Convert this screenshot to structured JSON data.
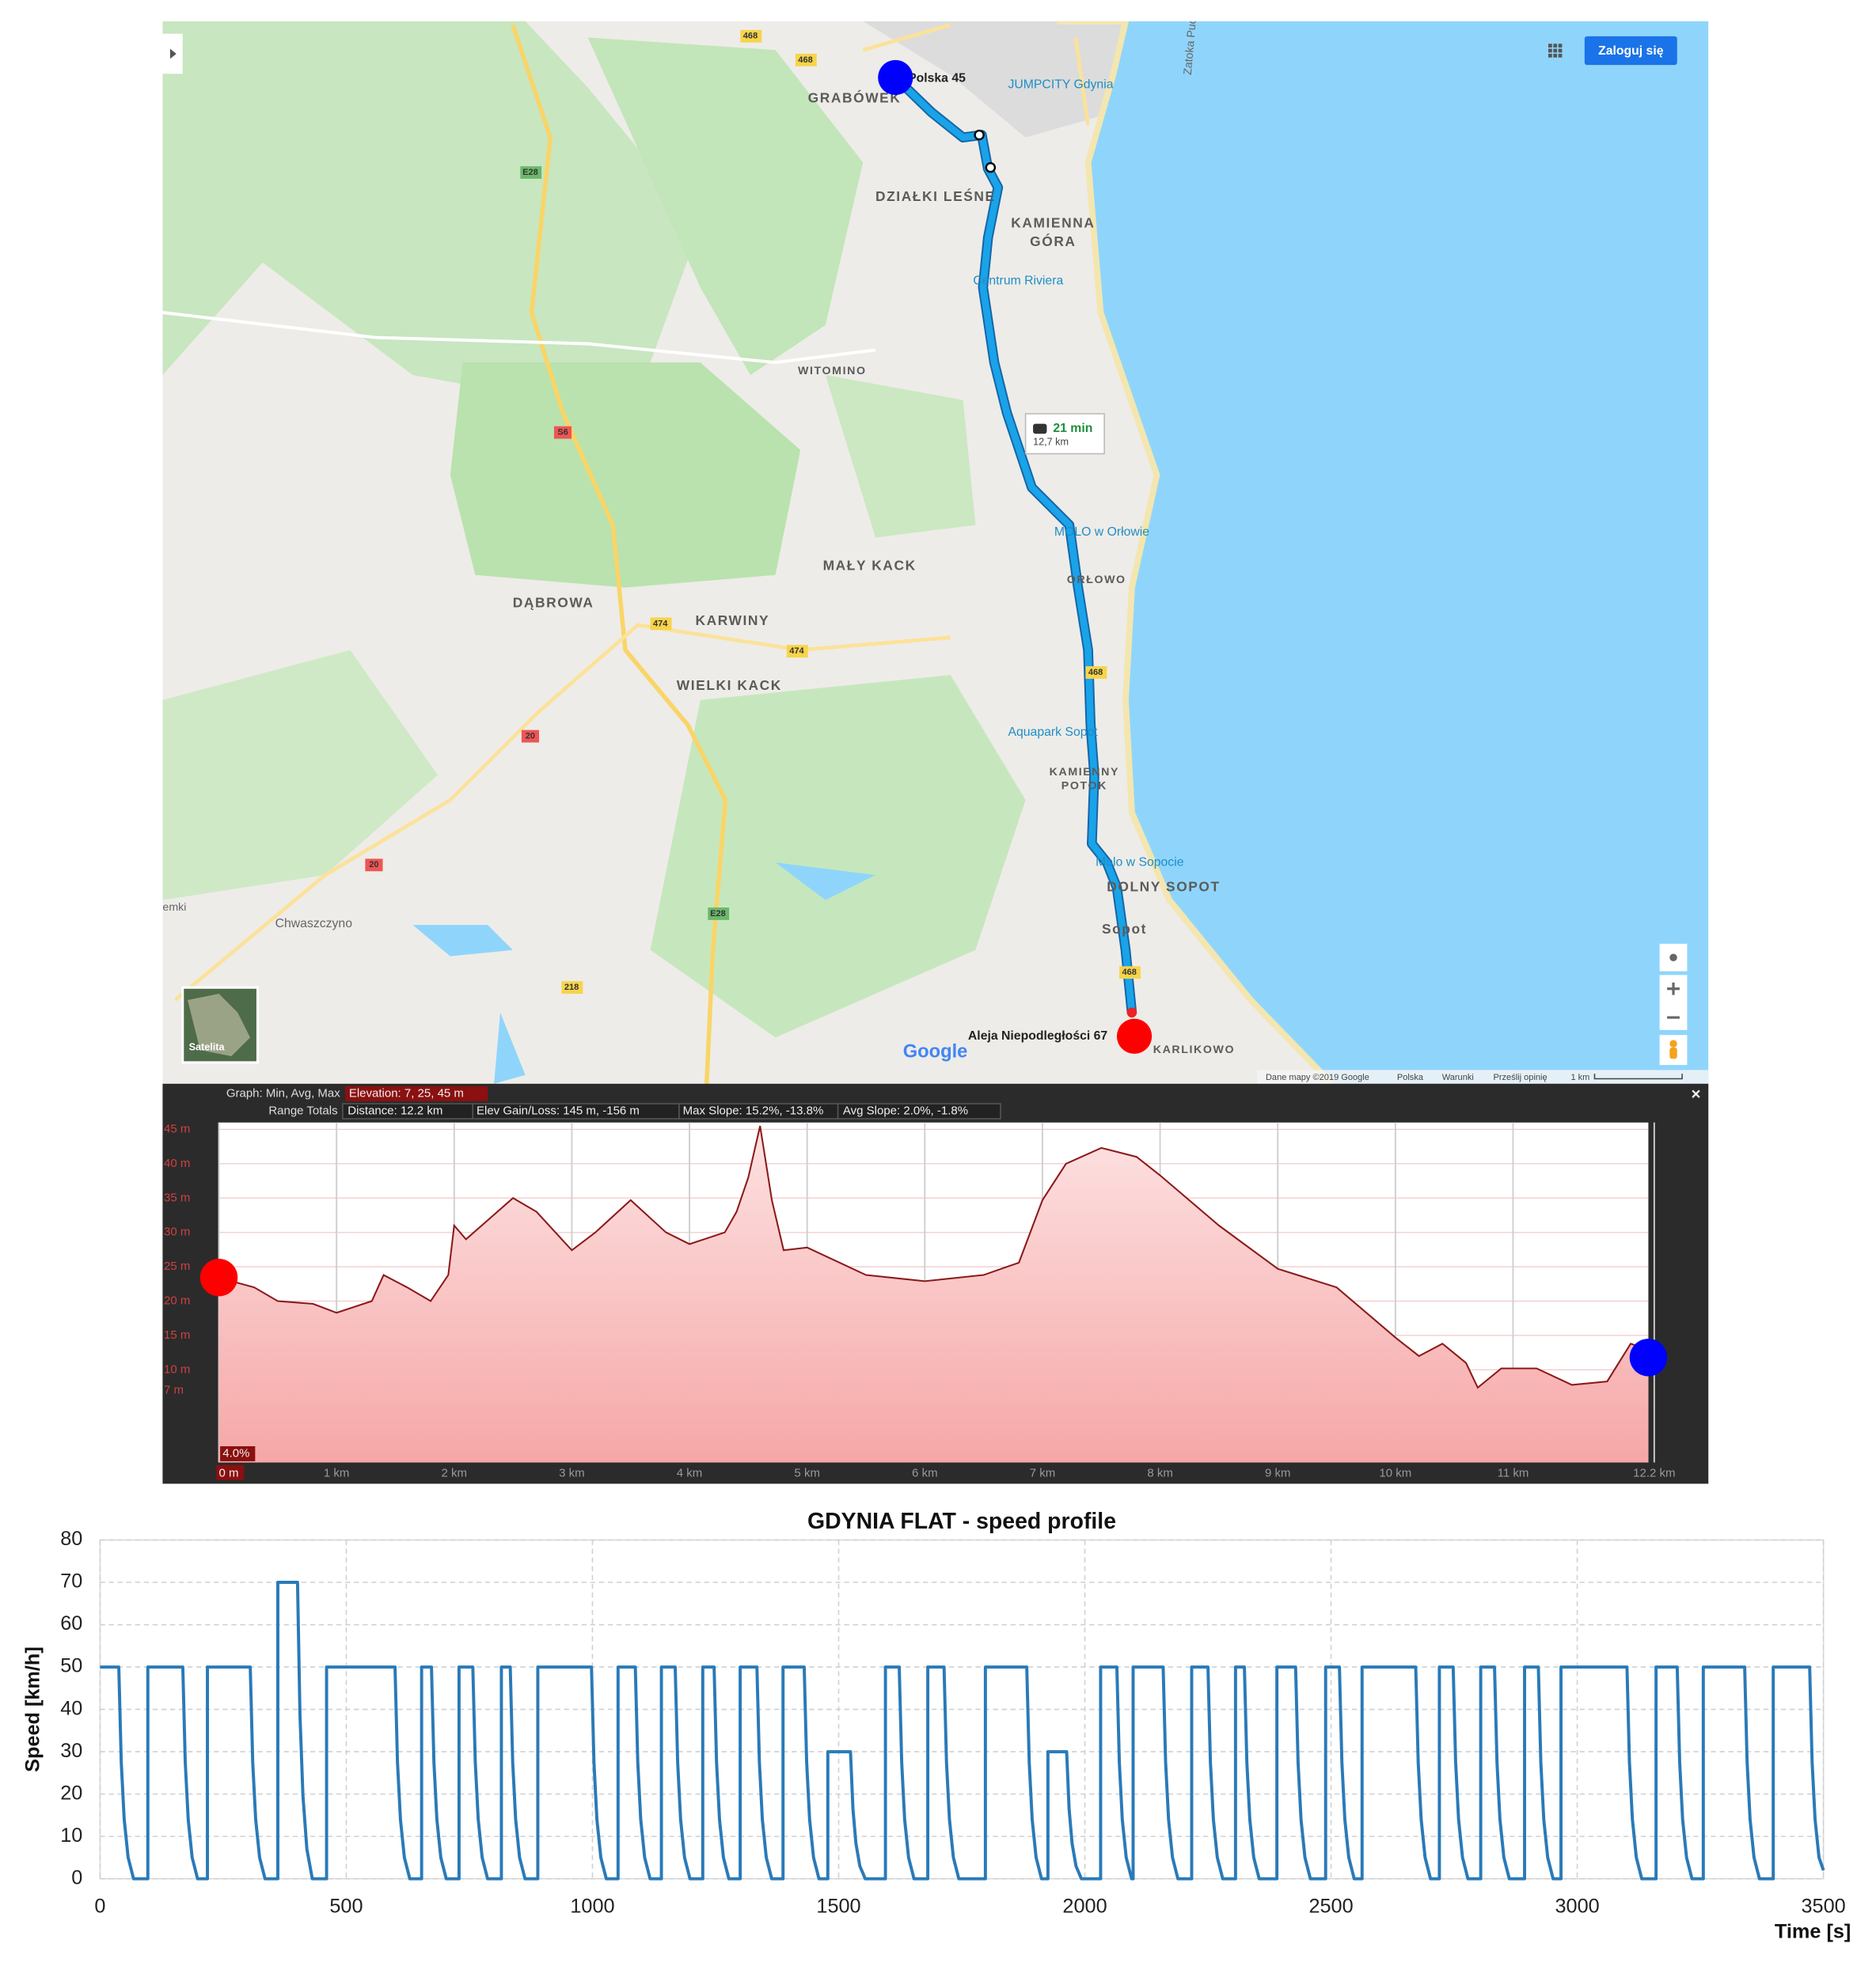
{
  "map": {
    "login": "Zaloguj się",
    "labels": [
      "GRABÓWEK",
      "JUMPCITY Gdynia",
      "DZIAŁKI LEŚNE",
      "KAMIENNA",
      "GÓRA",
      "Centrum Riviera",
      "WITOMINO",
      "MOLO w Orłowie",
      "MAŁY KACK",
      "ORŁOWO",
      "DĄBROWA",
      "KARWINY",
      "WIELKI KACK",
      "Aquapark Sopot",
      "KAMIENNY",
      "POTOK",
      "Molo w Sopocie",
      "DOLNY SOPOT",
      "Sopot",
      "Chwaszczyno",
      "KARLIKOWO",
      "Zatoka Pucka",
      "emki"
    ],
    "start": "Polska 45",
    "end": "Aleja Niepodległości 67",
    "trip_time": "21 min",
    "trip_distance": "12,7 km",
    "roads": [
      "468",
      "468",
      "E28",
      "S6",
      "474",
      "474",
      "20",
      "20",
      "218",
      "E28",
      "468",
      "468"
    ],
    "logo": "Google",
    "satellite": "Satelita",
    "footer": [
      "Dane mapy ©2019 Google",
      "Polska",
      "Warunki",
      "Prześlij opinię",
      "1 km"
    ]
  },
  "chart_data": [
    {
      "type": "area",
      "header": [
        "Graph: Min, Avg, Max",
        "Elevation: 7, 25, 45 m",
        "Range Totals",
        "Distance: 12.2 km",
        "Elev Gain/Loss: 145 m, -156 m",
        "Max Slope: 15.2%, -13.8%",
        "Avg Slope: 2.0%, -1.8%"
      ],
      "annotations": [
        "4.0%"
      ],
      "color": "#8b1a1a",
      "x": [
        0,
        0.3,
        0.5,
        0.8,
        1.0,
        1.3,
        1.4,
        1.6,
        1.8,
        1.95,
        2.0,
        2.1,
        2.3,
        2.5,
        2.7,
        3.0,
        3.2,
        3.5,
        3.8,
        4.0,
        4.3,
        4.4,
        4.5,
        4.6,
        4.7,
        4.8,
        5.0,
        5.5,
        6.0,
        6.5,
        6.8,
        7.0,
        7.2,
        7.5,
        7.8,
        8.0,
        8.5,
        9.0,
        9.5,
        10.0,
        10.2,
        10.4,
        10.6,
        10.7,
        10.9,
        11.2,
        11.5,
        11.8,
        12.0,
        12.1,
        12.15
      ],
      "values": [
        23.4,
        22,
        20,
        19.6,
        18.3,
        20,
        23.8,
        22,
        20,
        23.8,
        31,
        29,
        32,
        35,
        33,
        27.4,
        30,
        34.7,
        30,
        28.3,
        30,
        33,
        38,
        45.5,
        34.7,
        27.4,
        27.8,
        23.8,
        22.9,
        23.8,
        25.6,
        34.7,
        40,
        42.3,
        41,
        38.3,
        31,
        24.7,
        22,
        14.7,
        12,
        13.8,
        11,
        7.4,
        10.2,
        10.2,
        7.8,
        8.3,
        13.8,
        13.2,
        11.8
      ],
      "xlim": [
        0,
        12.15
      ],
      "ylim": [
        -3.5,
        46
      ],
      "xticks": [
        {
          "value": 0,
          "label": "0 m"
        },
        {
          "value": 1,
          "label": "1 km"
        },
        {
          "value": 2,
          "label": "2 km"
        },
        {
          "value": 3,
          "label": "3 km"
        },
        {
          "value": 4,
          "label": "4 km"
        },
        {
          "value": 5,
          "label": "5 km"
        },
        {
          "value": 6,
          "label": "6 km"
        },
        {
          "value": 7,
          "label": "7 km"
        },
        {
          "value": 8,
          "label": "8 km"
        },
        {
          "value": 9,
          "label": "9 km"
        },
        {
          "value": 10,
          "label": "10 km"
        },
        {
          "value": 11,
          "label": "11 km"
        },
        {
          "value": 12.2,
          "label": "12.2 km"
        }
      ],
      "yticks": [
        {
          "value": 45,
          "label": "45 m"
        },
        {
          "value": 40,
          "label": "40 m"
        },
        {
          "value": 35,
          "label": "35 m"
        },
        {
          "value": 30,
          "label": "30 m"
        },
        {
          "value": 25,
          "label": "25 m"
        },
        {
          "value": 20,
          "label": "20 m"
        },
        {
          "value": 15,
          "label": "15 m"
        },
        {
          "value": 10,
          "label": "10 m"
        },
        {
          "value": 7,
          "label": "7 m"
        }
      ],
      "grid": true
    },
    {
      "type": "line",
      "title": "GDYNIA FLAT - speed profile",
      "xlabel": "Time [s]",
      "ylabel": "Speed [km/h]",
      "color": "#2a7ab8",
      "x": [
        0,
        38,
        43,
        49,
        57,
        68,
        97,
        97,
        168,
        173,
        179,
        187,
        198,
        218,
        218,
        305,
        310,
        316,
        324,
        335,
        361,
        361,
        401,
        406,
        412,
        420,
        431,
        460,
        460,
        599,
        604,
        610,
        618,
        629,
        653,
        653,
        673,
        678,
        684,
        692,
        703,
        729,
        729,
        757,
        762,
        768,
        776,
        787,
        815,
        815,
        833,
        838,
        844,
        852,
        863,
        889,
        889,
        998,
        1003,
        1009,
        1017,
        1028,
        1052,
        1052,
        1087,
        1092,
        1098,
        1106,
        1117,
        1140,
        1140,
        1168,
        1173,
        1179,
        1187,
        1198,
        1224,
        1224,
        1247,
        1252,
        1258,
        1266,
        1277,
        1300,
        1300,
        1334,
        1339,
        1345,
        1353,
        1364,
        1387,
        1387,
        1430,
        1435,
        1441,
        1449,
        1460,
        1478,
        1478,
        1524,
        1529,
        1535,
        1543,
        1554,
        1595,
        1595,
        1623,
        1628,
        1634,
        1642,
        1653,
        1681,
        1681,
        1714,
        1719,
        1725,
        1733,
        1744,
        1798,
        1798,
        1882,
        1887,
        1893,
        1901,
        1912,
        1925,
        1925,
        1963,
        1968,
        1974,
        1982,
        1993,
        2032,
        2032,
        2065,
        2070,
        2076,
        2084,
        2095,
        2098,
        2098,
        2159,
        2164,
        2170,
        2178,
        2189,
        2217,
        2217,
        2250,
        2255,
        2261,
        2269,
        2280,
        2306,
        2306,
        2324,
        2329,
        2335,
        2343,
        2354,
        2390,
        2390,
        2428,
        2433,
        2439,
        2447,
        2458,
        2489,
        2489,
        2517,
        2522,
        2528,
        2536,
        2547,
        2563,
        2563,
        2672,
        2677,
        2683,
        2691,
        2702,
        2720,
        2720,
        2748,
        2753,
        2759,
        2767,
        2778,
        2804,
        2804,
        2832,
        2837,
        2843,
        2851,
        2862,
        2893,
        2893,
        2921,
        2926,
        2932,
        2940,
        2951,
        2967,
        2967,
        3101,
        3106,
        3112,
        3120,
        3131,
        3160,
        3160,
        3203,
        3208,
        3214,
        3222,
        3233,
        3256,
        3256,
        3340,
        3345,
        3351,
        3359,
        3370,
        3398,
        3398,
        3472,
        3477,
        3483,
        3491,
        3500
      ],
      "values": [
        50,
        50,
        27.5,
        14,
        5,
        0,
        0,
        50,
        50,
        27.5,
        14,
        5,
        0,
        0,
        50,
        50,
        27.5,
        14,
        5,
        0,
        0,
        70,
        70,
        38.5,
        19.6,
        7,
        0,
        0,
        50,
        50,
        27.5,
        14,
        5,
        0,
        0,
        50,
        50,
        27.5,
        14,
        5,
        0,
        0,
        50,
        50,
        27.5,
        14,
        5,
        0,
        0,
        50,
        50,
        27.5,
        14,
        5,
        0,
        0,
        50,
        50,
        27.5,
        14,
        5,
        0,
        0,
        50,
        50,
        27.5,
        14,
        5,
        0,
        0,
        50,
        50,
        27.5,
        14,
        5,
        0,
        0,
        50,
        50,
        27.5,
        14,
        5,
        0,
        0,
        50,
        50,
        27.5,
        14,
        5,
        0,
        0,
        50,
        50,
        27.5,
        14,
        5,
        0,
        0,
        30,
        30,
        16.5,
        8.4,
        3,
        0,
        0,
        50,
        50,
        27.5,
        14,
        5,
        0,
        0,
        50,
        50,
        27.5,
        14,
        5,
        0,
        0,
        50,
        50,
        27.5,
        14,
        5,
        0,
        0,
        30,
        30,
        16.5,
        8.4,
        3,
        0,
        0,
        50,
        50,
        27.5,
        14,
        5,
        0,
        0,
        50,
        50,
        27.5,
        14,
        5,
        0,
        0,
        50,
        50,
        27.5,
        14,
        5,
        0,
        0,
        50,
        50,
        27.5,
        14,
        5,
        0,
        0,
        50,
        50,
        27.5,
        14,
        5,
        0,
        0,
        50,
        50,
        27.5,
        14,
        5,
        0,
        0,
        50,
        50,
        27.5,
        14,
        5,
        0,
        0,
        50,
        50,
        27.5,
        14,
        5,
        0,
        0,
        50,
        50,
        27.5,
        14,
        5,
        0,
        0,
        50,
        50,
        27.5,
        14,
        5,
        0,
        0,
        50,
        50,
        27.5,
        14,
        5,
        0,
        0,
        50,
        50,
        27.5,
        14,
        5,
        0,
        0,
        50,
        50,
        27.5,
        14,
        5,
        0,
        0,
        50,
        50,
        27.5,
        14,
        5,
        2
      ],
      "xlim": [
        0,
        3500
      ],
      "ylim": [
        0,
        80
      ],
      "xticks": [
        0,
        500,
        1000,
        1500,
        2000,
        2500,
        3000,
        3500
      ],
      "yticks": [
        0,
        10,
        20,
        30,
        40,
        50,
        60,
        70,
        80
      ],
      "grid": true
    }
  ]
}
